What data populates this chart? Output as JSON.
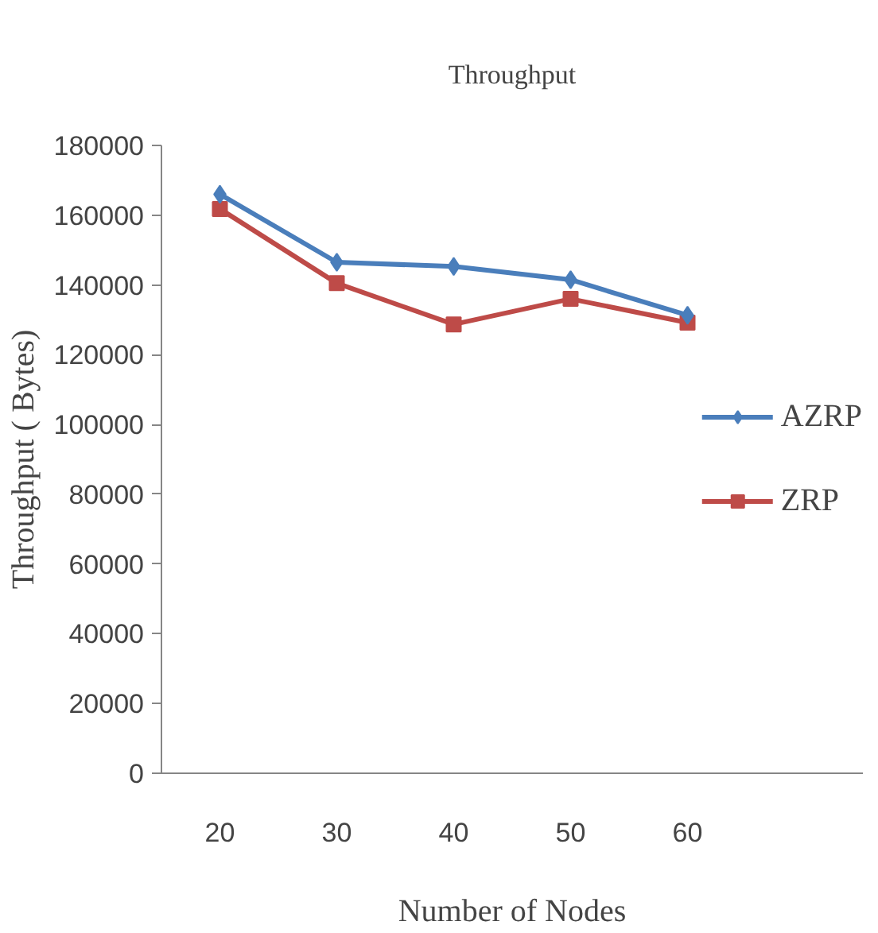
{
  "chart_data": {
    "type": "line",
    "title": "Throughput",
    "xlabel": "Number of Nodes",
    "ylabel": "Throughput ( Bytes)",
    "categories": [
      "20",
      "30",
      "40",
      "50",
      "60"
    ],
    "series": [
      {
        "name": "AZRP",
        "color": "#4a7ebb",
        "marker": "diamond",
        "values": [
          166000,
          146500,
          145300,
          141500,
          131300
        ]
      },
      {
        "name": "ZRP",
        "color": "#be4b48",
        "marker": "square",
        "values": [
          161800,
          140500,
          128700,
          136000,
          129200
        ]
      }
    ],
    "ylim": [
      0,
      180000
    ],
    "yticks": [
      0,
      20000,
      40000,
      60000,
      80000,
      100000,
      120000,
      140000,
      160000,
      180000
    ],
    "grid": false,
    "legend": "right",
    "line_style": "solid"
  }
}
